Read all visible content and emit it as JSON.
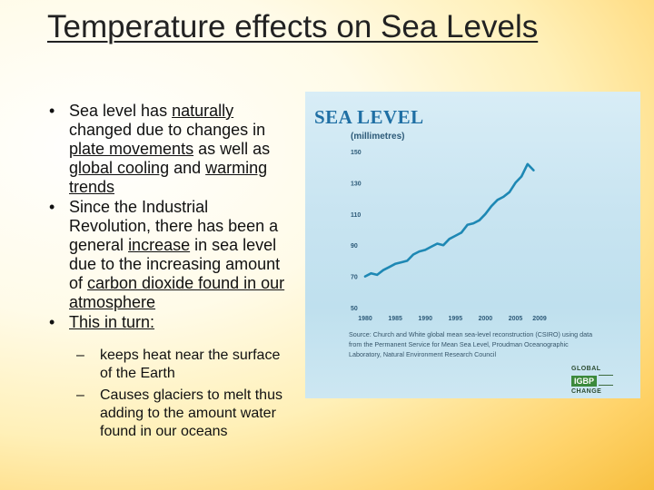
{
  "slide": {
    "title": "Temperature effects on Sea Levels",
    "bullets": [
      {
        "parts": [
          {
            "text": "Sea level has ",
            "u": false
          },
          {
            "text": "naturally",
            "u": true
          },
          {
            "text": " changed due to changes in ",
            "u": false
          },
          {
            "text": "plate movements",
            "u": true
          },
          {
            "text": " as well as ",
            "u": false
          },
          {
            "text": "global cooling",
            "u": true
          },
          {
            "text": " and ",
            "u": false
          },
          {
            "text": "warming trends",
            "u": true
          }
        ]
      },
      {
        "parts": [
          {
            "text": "Since the Industrial Revolution, there has been a general ",
            "u": false
          },
          {
            "text": "increase",
            "u": true
          },
          {
            "text": " in sea level due to the increasing amount of ",
            "u": false
          },
          {
            "text": "carbon dioxide found in our atmosphere",
            "u": true
          }
        ]
      },
      {
        "parts": [
          {
            "text": "This in turn:",
            "u": true
          }
        ],
        "sub": [
          "keeps heat near the surface of the Earth",
          "Causes glaciers to melt thus adding to the amount water found in our oceans"
        ]
      }
    ]
  },
  "figure": {
    "title": "SEA LEVEL",
    "unit": "(millimetres)",
    "source": "Source: Church and White global mean sea-level reconstruction (CSIRO) using data from the Permanent Service for Mean Sea Level, Proudman Oceanographic Laboratory, Natural Environment Research Council",
    "logo": {
      "line1": "GLOBAL",
      "box": "IGBP",
      "line2": "CHANGE"
    },
    "colors": {
      "line": "#1e88b4",
      "text": "#2d5a78"
    }
  },
  "chart_data": {
    "type": "line",
    "title": "SEA LEVEL",
    "ylabel": "(millimetres)",
    "xlim": [
      1980,
      2009
    ],
    "ylim": [
      50,
      150
    ],
    "x_ticks": [
      "1980",
      "1985",
      "1990",
      "1995",
      "2000",
      "2005",
      "2009"
    ],
    "y_ticks": [
      "150",
      "130",
      "110",
      "90",
      "70",
      "50"
    ],
    "series": [
      {
        "x": [
          1980,
          1981,
          1982,
          1983,
          1984,
          1985,
          1986,
          1987,
          1988,
          1989,
          1990,
          1991,
          1992,
          1993,
          1994,
          1995,
          1996,
          1997,
          1998,
          1999,
          2000,
          2001,
          2002,
          2003,
          2004,
          2005,
          2006,
          2007,
          2008
        ],
        "values": [
          70,
          72,
          71,
          74,
          76,
          78,
          79,
          80,
          84,
          86,
          87,
          89,
          91,
          90,
          94,
          96,
          98,
          103,
          104,
          106,
          110,
          115,
          119,
          121,
          124,
          130,
          134,
          142,
          138
        ]
      }
    ]
  }
}
